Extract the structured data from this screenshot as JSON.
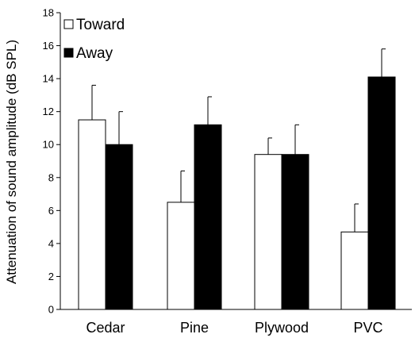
{
  "chart_data": {
    "type": "bar",
    "title": "",
    "xlabel": "",
    "ylabel": "Attenuation of sound amplitude (dB SPL)",
    "categories": [
      "Cedar",
      "Pine",
      "Plywood",
      "PVC"
    ],
    "series": [
      {
        "name": "Toward",
        "values": [
          11.5,
          6.5,
          9.4,
          4.7
        ],
        "error": [
          2.1,
          1.9,
          1.0,
          1.7
        ],
        "fill": "#ffffff",
        "stroke": "#000000"
      },
      {
        "name": "Away",
        "values": [
          10.0,
          11.2,
          9.4,
          14.1
        ],
        "error": [
          2.0,
          1.7,
          1.8,
          1.7
        ],
        "fill": "#000000",
        "stroke": "#000000"
      }
    ],
    "ylim": [
      0,
      18
    ],
    "yticks": [
      0,
      2,
      4,
      6,
      8,
      10,
      12,
      14,
      16,
      18
    ],
    "grid": false,
    "legend_position": "top-left",
    "error_bars": "upper"
  }
}
